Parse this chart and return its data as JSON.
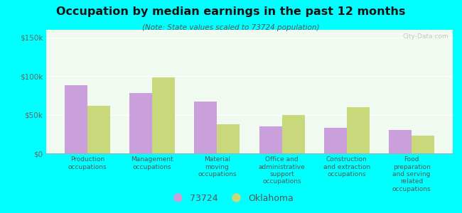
{
  "title": "Occupation by median earnings in the past 12 months",
  "subtitle": "(Note: State values scaled to 73724 population)",
  "categories": [
    "Production\noccupations",
    "Management\noccupations",
    "Material\nmoving\noccupations",
    "Office and\nadministrative\nsupport\noccupations",
    "Construction\nand extraction\noccupations",
    "Food\npreparation\nand serving\nrelated\noccupations"
  ],
  "values_73724": [
    88000,
    78000,
    67000,
    35000,
    33000,
    30000
  ],
  "values_oklahoma": [
    62000,
    98000,
    38000,
    50000,
    60000,
    23000
  ],
  "color_73724": "#c9a0dc",
  "color_oklahoma": "#c8d87a",
  "ylim": [
    0,
    160000
  ],
  "yticks": [
    0,
    50000,
    100000,
    150000
  ],
  "ytick_labels": [
    "$0",
    "$50k",
    "$100k",
    "$150k"
  ],
  "background_color": "#00ffff",
  "plot_bg_color": "#eaf5e0",
  "watermark": "City-Data.com",
  "legend_label_1": "73724",
  "legend_label_2": "Oklahoma",
  "bar_width": 0.35
}
